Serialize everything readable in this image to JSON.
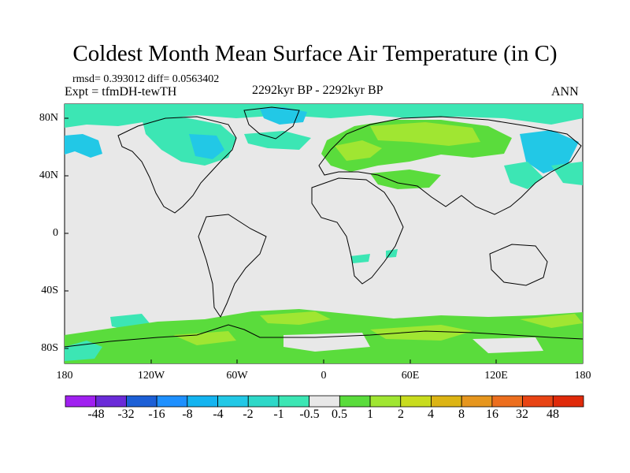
{
  "header": {
    "title": "Coldest Month Mean Surface Air Temperature (in C)",
    "stats": "rmsd= 0.393012 diff= 0.0563402",
    "experiment": "Expt = tfmDH-tewTH",
    "period": "2292kyr BP - 2292kyr BP",
    "season": "ANN"
  },
  "axes": {
    "lat_labels": [
      "80N",
      "40N",
      "0",
      "40S",
      "80S"
    ],
    "lat_values": [
      80,
      40,
      0,
      -40,
      -80
    ],
    "lon_labels": [
      "180",
      "120W",
      "60W",
      "0",
      "60E",
      "120E",
      "180"
    ],
    "lon_values": [
      -180,
      -120,
      -60,
      0,
      60,
      120,
      180
    ]
  },
  "colorbar": {
    "labels": [
      "-48",
      "-32",
      "-16",
      "-8",
      "-4",
      "-2",
      "-1",
      "-0.5",
      "0.5",
      "1",
      "2",
      "4",
      "8",
      "16",
      "32",
      "48"
    ],
    "colors": [
      "#a020f0",
      "#6a2bd8",
      "#1c5fd6",
      "#1e90ff",
      "#14b4f0",
      "#22c8e6",
      "#2ed8c8",
      "#3ce6b4",
      "#e8e8e8",
      "#5adc3c",
      "#a0e632",
      "#c8dc1e",
      "#dcb414",
      "#e6961e",
      "#ec6e1e",
      "#e84414",
      "#e02a0a"
    ]
  },
  "map": {
    "colors": {
      "neutral": "#e8e8e8",
      "cool": "#3ce6b4",
      "cold": "#22c8e6",
      "warm": "#5adc3c",
      "warmer": "#a0e632",
      "coast": "#000000"
    }
  }
}
